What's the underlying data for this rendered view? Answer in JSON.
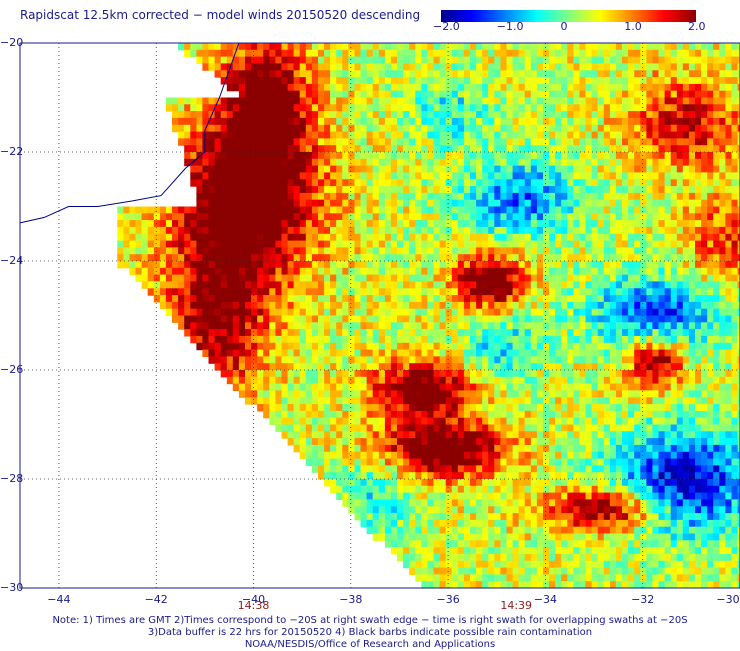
{
  "title": "Rapidscat 12.5km corrected − model winds 20150520 descending",
  "colorbar": {
    "labels": [
      "−2.0",
      "−1.0",
      "0",
      "1.0",
      "2.0"
    ],
    "values": [
      -2,
      -1,
      0,
      1,
      2
    ],
    "range": [
      -2,
      2
    ],
    "colors": [
      "#00008b",
      "#0000ff",
      "#0080ff",
      "#00ffff",
      "#80ff80",
      "#ffff00",
      "#ff8000",
      "#ff0000",
      "#8b0000"
    ]
  },
  "map": {
    "lat_labels": [
      "−20",
      "−22",
      "−24",
      "−26",
      "−28",
      "−30"
    ],
    "lat_values": [
      -20,
      -22,
      -24,
      -26,
      -28,
      -30
    ],
    "lon_labels": [
      "−44",
      "−42",
      "−40",
      "−38",
      "−36",
      "−34",
      "−32",
      "−30"
    ],
    "lon_values": [
      -44,
      -42,
      -40,
      -38,
      -36,
      -34,
      -32,
      -30
    ],
    "lat_range": [
      -30,
      -20
    ],
    "lon_range": [
      -44.8,
      -30
    ],
    "time_labels": [
      "14:38",
      "14:39"
    ],
    "time_lons": [
      -40,
      -34.6
    ],
    "grid": "dotted",
    "coast_color": "#00008b"
  },
  "notes": [
    "Note: 1) Times are GMT 2)Times correspond to −20S at right swath edge − time is right swath for overlapping swaths at −20S",
    "3)Data buffer is 22 hrs for 20150520 4) Black barbs indicate possible rain contamination",
    "NOAA/NESDIS/Office of Research and Applications"
  ]
}
